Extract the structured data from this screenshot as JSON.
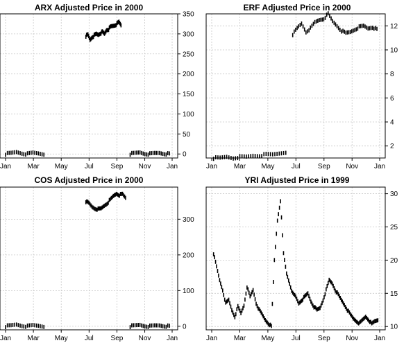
{
  "chart_data": [
    {
      "type": "bar",
      "subtype": "ohlc",
      "title": "ARX Adjusted Price in 2000",
      "x_ticks": [
        "Jan",
        "Mar",
        "May",
        "Jul",
        "Sep",
        "Nov",
        "Jan"
      ],
      "ylim": [
        -10,
        350
      ],
      "y_ticks": [
        0,
        50,
        100,
        150,
        200,
        250,
        300,
        350
      ],
      "grid": true,
      "y_axis_side": "right",
      "segments": [
        {
          "start": "2000-01-01",
          "end": "2000-03-25",
          "y": [
            0,
            2,
            5,
            2,
            0,
            3,
            2,
            0
          ]
        },
        {
          "start": "2000-06-25",
          "end": "2000-09-10",
          "y": [
            295,
            298,
            285,
            292,
            296,
            300,
            298,
            302,
            305,
            300,
            310,
            312,
            318,
            320,
            322,
            325,
            330,
            322
          ]
        },
        {
          "start": "2000-09-30",
          "end": "2000-12-25",
          "y": [
            0,
            2,
            4,
            1,
            0,
            2,
            3,
            1,
            0
          ]
        }
      ]
    },
    {
      "type": "bar",
      "subtype": "ohlc",
      "title": "ERF Adjusted Price in 2000",
      "x_ticks": [
        "Jan",
        "Mar",
        "May",
        "Jul",
        "Sep",
        "Nov",
        "Jan"
      ],
      "ylim": [
        1,
        13
      ],
      "y_ticks": [
        2,
        4,
        6,
        8,
        10,
        12
      ],
      "grid": true,
      "y_axis_side": "right",
      "segments": [
        {
          "start": "2000-01-05",
          "end": "2000-06-10",
          "y": [
            1.0,
            1.0,
            1.1,
            1.0,
            1.1,
            1.1,
            1.2,
            1.2,
            1.3,
            1.3,
            1.4,
            1.5
          ]
        },
        {
          "start": "2000-06-25",
          "end": "2000-12-25",
          "y": [
            11.3,
            11.8,
            12.2,
            11.5,
            11.8,
            12.3,
            12.5,
            12.6,
            13.0,
            12.4,
            12.0,
            11.6,
            11.4,
            11.5,
            11.7,
            11.9,
            12.0,
            11.8,
            11.9,
            11.7
          ]
        }
      ]
    },
    {
      "type": "bar",
      "subtype": "ohlc",
      "title": "COS Adjusted Price in 2000",
      "x_ticks": [
        "Jan",
        "Mar",
        "May",
        "Jul",
        "Sep",
        "Nov",
        "Jan"
      ],
      "ylim": [
        -10,
        390
      ],
      "y_ticks": [
        0,
        100,
        200,
        300
      ],
      "grid": true,
      "y_axis_side": "right",
      "segments": [
        {
          "start": "2000-01-01",
          "end": "2000-03-25",
          "y": [
            0,
            2,
            5,
            2,
            0,
            3,
            2,
            0
          ]
        },
        {
          "start": "2000-06-25",
          "end": "2000-09-20",
          "y": [
            350,
            345,
            335,
            330,
            328,
            330,
            338,
            345,
            355,
            365,
            372,
            368,
            370,
            360
          ]
        },
        {
          "start": "2000-09-30",
          "end": "2000-12-25",
          "y": [
            0,
            2,
            4,
            1,
            0,
            2,
            3,
            1,
            0
          ]
        }
      ]
    },
    {
      "type": "bar",
      "subtype": "ohlc",
      "title": "YRI Adjusted Price in 1999",
      "x_ticks": [
        "Jan",
        "Mar",
        "May",
        "Jul",
        "Sep",
        "Nov",
        "Jan"
      ],
      "ylim": [
        9.5,
        31
      ],
      "y_ticks": [
        10,
        15,
        20,
        25,
        30
      ],
      "grid": true,
      "y_axis_side": "right",
      "segments": [
        {
          "start": "1999-01-05",
          "end": "1999-12-28",
          "y": [
            21,
            19,
            17,
            15.5,
            13.5,
            14,
            12.5,
            11.5,
            13,
            12,
            13.2,
            16,
            14.5,
            15.5,
            13.5,
            12.5,
            11.8,
            11,
            10.5,
            10,
            20,
            26,
            29,
            21,
            18,
            16.5,
            15,
            14.5,
            13.5,
            14,
            14.5,
            15,
            13.8,
            13,
            12.5,
            12.8,
            14,
            15.5,
            17,
            16.5,
            15.5,
            14.8,
            14,
            13.3,
            12.5,
            11.8,
            11.2,
            10.8,
            10.5,
            11,
            11.5,
            11,
            10.4,
            10.8,
            11
          ]
        }
      ]
    }
  ]
}
